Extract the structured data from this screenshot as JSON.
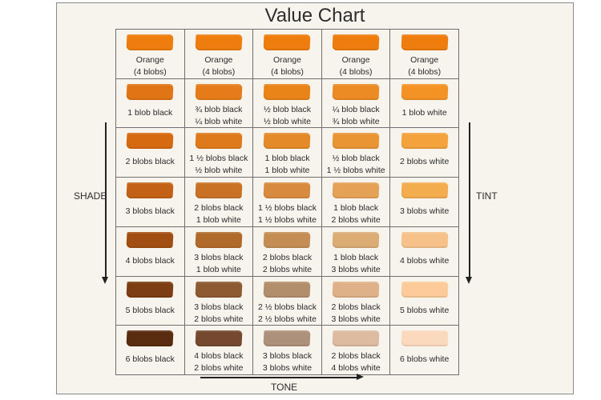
{
  "title": "Value Chart",
  "axes": {
    "shade": "SHADE",
    "tint": "TINT",
    "tone": "TONE"
  },
  "grid": {
    "rows": [
      [
        {
          "color": "#ee7d0e",
          "label": "Orange\n(4 blobs)"
        },
        {
          "color": "#ee7d0e",
          "label": "Orange\n(4 blobs)"
        },
        {
          "color": "#ee7d0e",
          "label": "Orange\n(4 blobs)"
        },
        {
          "color": "#ee7d0e",
          "label": "Orange\n(4 blobs)"
        },
        {
          "color": "#ee7d0e",
          "label": "Orange\n(4 blobs)"
        }
      ],
      [
        {
          "color": "#e17414",
          "label": "1 blob black"
        },
        {
          "color": "#e57c19",
          "label": "¾ blob black\n¼ blob white"
        },
        {
          "color": "#e98419",
          "label": "½ blob black\n½ blob white"
        },
        {
          "color": "#ec8a23",
          "label": "¼ blob black\n¾ blob white"
        },
        {
          "color": "#f39326",
          "label": "1 blob white"
        }
      ],
      [
        {
          "color": "#d66a10",
          "label": "2 blobs black"
        },
        {
          "color": "#de7a1c",
          "label": "1 ½ blobs black\n½ blob white"
        },
        {
          "color": "#e58a28",
          "label": "1 blob black\n1 blob white"
        },
        {
          "color": "#ea9534",
          "label": "½ blob black\n1 ½ blobs white"
        },
        {
          "color": "#f4a23b",
          "label": "2 blobs white"
        }
      ],
      [
        {
          "color": "#c36216",
          "label": "3 blobs black"
        },
        {
          "color": "#c97225",
          "label": "2 blobs black\n1 blob white"
        },
        {
          "color": "#d88a3e",
          "label": "1 ½ blobs black\n1 ½ blobs white"
        },
        {
          "color": "#e5a257",
          "label": "1 blob black\n2 blobs white"
        },
        {
          "color": "#f4ad4e",
          "label": "3 blobs white"
        }
      ],
      [
        {
          "color": "#a24e12",
          "label": "4 blobs black"
        },
        {
          "color": "#b06a2a",
          "label": "3 blobs black\n1 blob white"
        },
        {
          "color": "#c48d54",
          "label": "2 blobs black\n2 blobs white"
        },
        {
          "color": "#dcac75",
          "label": "1  blob black\n3 blobs white"
        },
        {
          "color": "#f6c28a",
          "label": "4 blobs white"
        }
      ],
      [
        {
          "color": "#7c3e12",
          "label": "5 blobs black"
        },
        {
          "color": "#8d5a32",
          "label": "3 blobs black\n2 blobs white"
        },
        {
          "color": "#b38e6c",
          "label": "2 ½ blobs black\n2 ½ blobs white"
        },
        {
          "color": "#dfb188",
          "label": "2 blobs black\n3 blobs white"
        },
        {
          "color": "#fccb99",
          "label": "5 blobs white"
        }
      ],
      [
        {
          "color": "#5a2c0f",
          "label": "6 blobs black"
        },
        {
          "color": "#74492f",
          "label": "4 blobs black\n2 blobs white"
        },
        {
          "color": "#ae917b",
          "label": "3 blobs black\n3 blobs white"
        },
        {
          "color": "#dcbba0",
          "label": "2 blobs black\n4 blobs white"
        },
        {
          "color": "#fad9bc",
          "label": "6 blobs white"
        }
      ]
    ]
  }
}
